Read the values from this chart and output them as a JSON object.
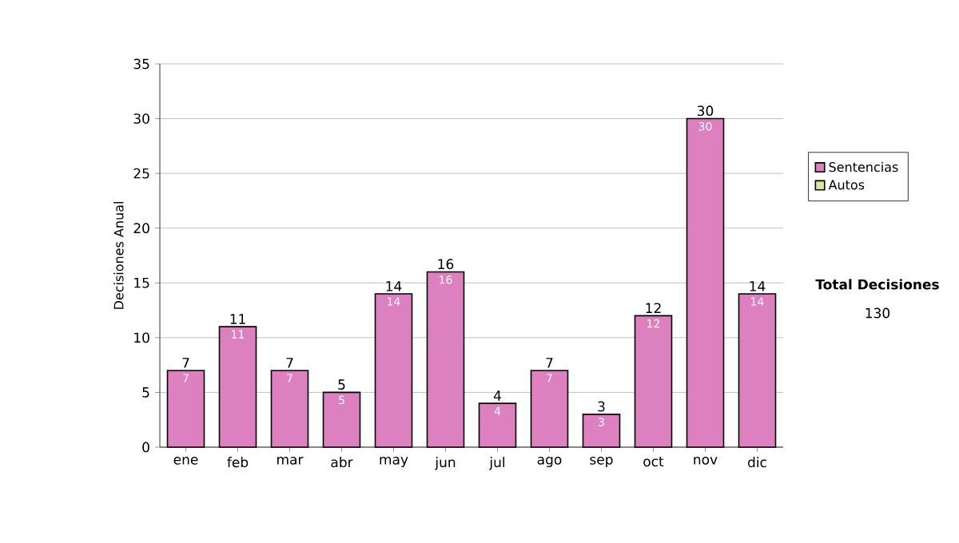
{
  "chart_data": {
    "type": "bar",
    "stacked": true,
    "ylabel": "Decisiones Anual",
    "categories": [
      "ene",
      "feb",
      "mar",
      "abr",
      "may",
      "jun",
      "jul",
      "ago",
      "sep",
      "oct",
      "nov",
      "dic"
    ],
    "series": [
      {
        "name": "Sentencias",
        "color": "#dd80c0",
        "values": [
          7,
          11,
          7,
          5,
          14,
          16,
          4,
          7,
          3,
          12,
          30,
          14
        ],
        "value_labels": [
          "7",
          "11",
          "7",
          "5",
          "14",
          "16",
          "4",
          "7",
          "3",
          "12",
          "30",
          "14"
        ]
      },
      {
        "name": "Autos",
        "color": "#d8e8a0",
        "values": [
          0,
          0,
          0,
          0,
          0,
          0,
          0,
          0,
          0,
          0,
          0,
          0
        ]
      }
    ],
    "totals": [
      "7",
      "11",
      "7",
      "5",
      "14",
      "16",
      "4",
      "7",
      "3",
      "12",
      "30",
      "14"
    ],
    "ylim": [
      0,
      35
    ],
    "yticks": [
      0,
      5,
      10,
      15,
      20,
      25,
      30,
      35
    ],
    "grid": "y",
    "legend": "right",
    "annotations": [
      "**Total Decisiones**",
      "130"
    ]
  }
}
